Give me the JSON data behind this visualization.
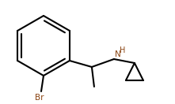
{
  "bg_color": "#ffffff",
  "bond_color": "#000000",
  "bond_lw": 1.5,
  "br_color": "#8b4513",
  "nh_color": "#8b4513",
  "font_size": 7.5,
  "figsize": [
    2.21,
    1.32
  ],
  "dpi": 100,
  "br_label": "Br",
  "n_label": "N",
  "h_label": "H"
}
